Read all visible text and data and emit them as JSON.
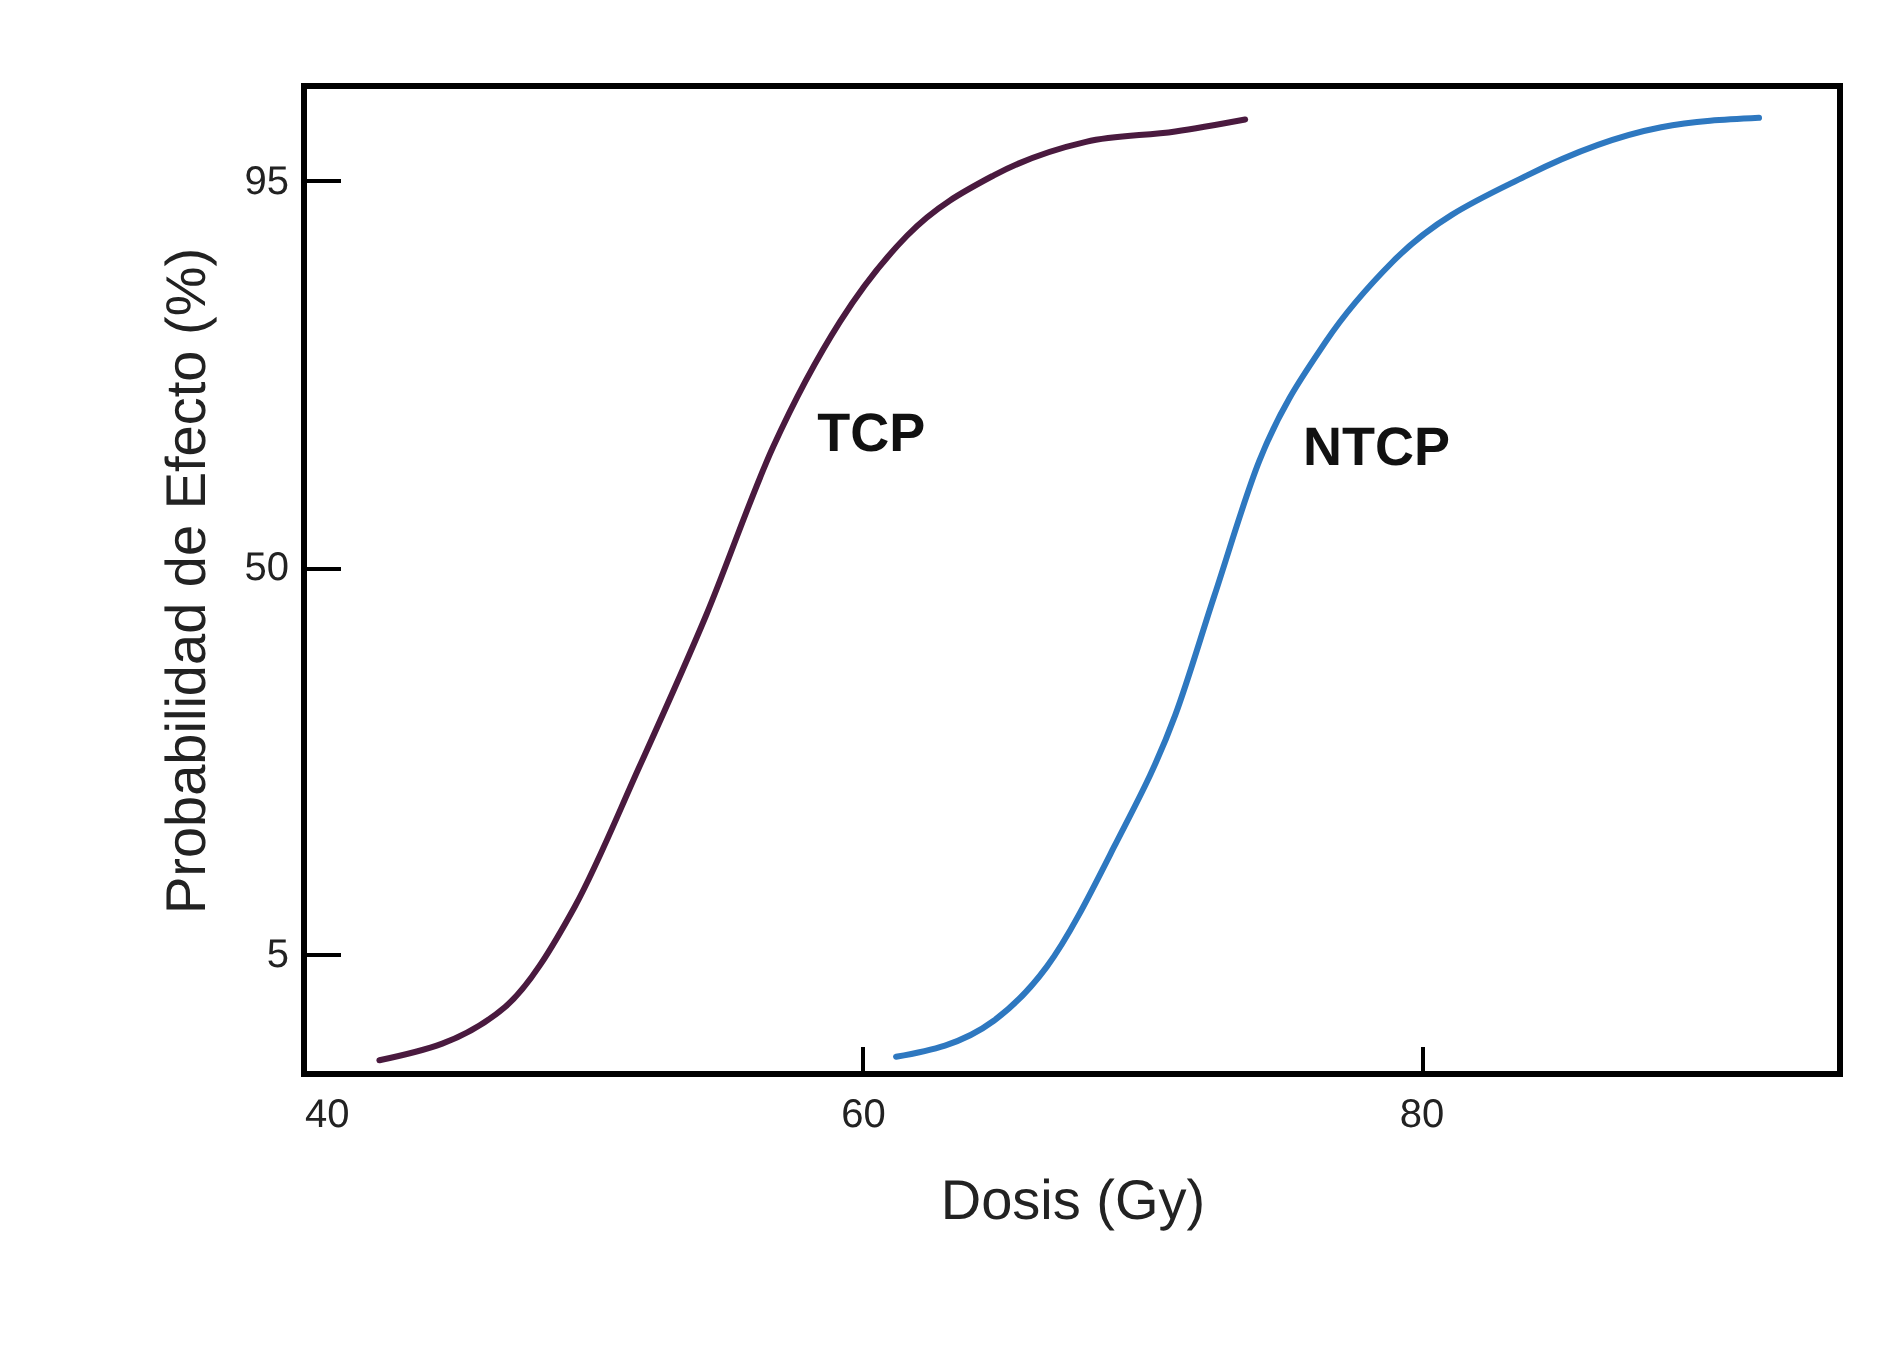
{
  "chart_data": {
    "type": "line",
    "xlabel": "Dosis (Gy)",
    "ylabel": "Probabilidad de Efecto (%)",
    "xlim": [
      40,
      95
    ],
    "ylim": [
      -9,
      106
    ],
    "xticks": [
      40,
      60,
      80
    ],
    "yticks": [
      5,
      50,
      95
    ],
    "grid": false,
    "legend": false,
    "marker": "none",
    "line_style": "solid",
    "series": [
      {
        "name": "TCP",
        "color": "#4a1a3f",
        "x": [
          42.7,
          47.2,
          49.7,
          52.0,
          54.4,
          56.8,
          59.2,
          61.6,
          64.7,
          68.0,
          71.2,
          73.7
        ],
        "values": [
          -7.4,
          -1.2,
          10.5,
          26.7,
          44.4,
          64.0,
          78.6,
          88.6,
          95.6,
          99.5,
          100.7,
          102.1
        ]
      },
      {
        "name": "NTCP",
        "color": "#2e78c0",
        "x": [
          61.2,
          64.7,
          66.6,
          69.0,
          71.2,
          72.6,
          74.2,
          76.6,
          79.0,
          83.8,
          88.6,
          92.1
        ],
        "values": [
          -7.0,
          -2.8,
          3.5,
          17.4,
          32.8,
          46.7,
          62.3,
          76.3,
          85.6,
          95.6,
          101.2,
          102.3
        ]
      }
    ]
  }
}
